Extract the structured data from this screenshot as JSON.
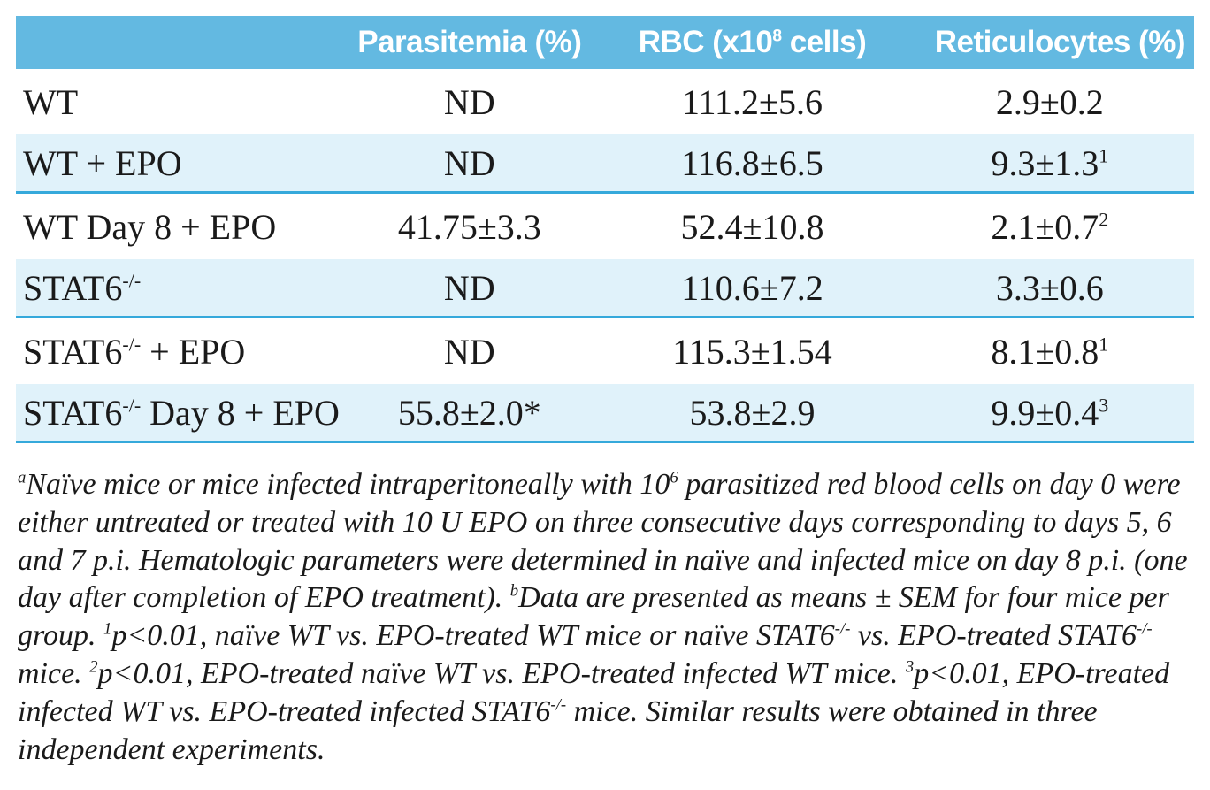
{
  "colors": {
    "page_bg": "#ffffff",
    "header_bg": "#63B9E1",
    "header_text": "#ffffff",
    "shaded_row_bg": "#E0F2FA",
    "divider": "#35A9DB",
    "text": "#1a1a1a"
  },
  "table": {
    "columns": [
      {
        "label": [
          {
            "t": ""
          }
        ]
      },
      {
        "label": [
          {
            "t": "Parasitemia (%)"
          }
        ]
      },
      {
        "label": [
          {
            "t": "RBC (x10"
          },
          {
            "t": "8",
            "sup": true
          },
          {
            "t": " cells)"
          }
        ]
      },
      {
        "label": [
          {
            "t": "Reticulocytes (%)"
          }
        ]
      }
    ],
    "rows": [
      {
        "shaded": false,
        "divider": false,
        "cells": [
          [
            {
              "t": "WT"
            }
          ],
          [
            {
              "t": "ND"
            }
          ],
          [
            {
              "t": "111.2±5.6"
            }
          ],
          [
            {
              "t": "2.9±0.2"
            }
          ]
        ]
      },
      {
        "shaded": true,
        "divider": true,
        "cells": [
          [
            {
              "t": "WT + EPO"
            }
          ],
          [
            {
              "t": "ND"
            }
          ],
          [
            {
              "t": "116.8±6.5"
            }
          ],
          [
            {
              "t": "9.3±1.3"
            },
            {
              "t": "1",
              "sup": true
            }
          ]
        ]
      },
      {
        "shaded": false,
        "divider": false,
        "cells": [
          [
            {
              "t": "WT Day 8 + EPO"
            }
          ],
          [
            {
              "t": "41.75±3.3"
            }
          ],
          [
            {
              "t": "52.4±10.8"
            }
          ],
          [
            {
              "t": "2.1±0.7"
            },
            {
              "t": "2",
              "sup": true
            }
          ]
        ]
      },
      {
        "shaded": true,
        "divider": true,
        "cells": [
          [
            {
              "t": "STAT6"
            },
            {
              "t": "-/-",
              "sup": true
            }
          ],
          [
            {
              "t": "ND"
            }
          ],
          [
            {
              "t": "110.6±7.2"
            }
          ],
          [
            {
              "t": "3.3±0.6"
            }
          ]
        ]
      },
      {
        "shaded": false,
        "divider": false,
        "cells": [
          [
            {
              "t": "STAT6"
            },
            {
              "t": "-/-",
              "sup": true
            },
            {
              "t": " + EPO"
            }
          ],
          [
            {
              "t": "ND"
            }
          ],
          [
            {
              "t": "115.3±1.54"
            }
          ],
          [
            {
              "t": "8.1±0.8"
            },
            {
              "t": "1",
              "sup": true
            }
          ]
        ]
      },
      {
        "shaded": true,
        "divider": true,
        "cells": [
          [
            {
              "t": "STAT6"
            },
            {
              "t": "-/-",
              "sup": true
            },
            {
              "t": " Day 8 + EPO"
            }
          ],
          [
            {
              "t": "55.8±2.0*"
            }
          ],
          [
            {
              "t": "53.8±2.9"
            }
          ],
          [
            {
              "t": "9.9±0.4"
            },
            {
              "t": "3",
              "sup": true
            }
          ]
        ]
      }
    ]
  },
  "footnote": {
    "runs": [
      {
        "t": "a",
        "sup": true
      },
      {
        "t": "Naïve mice or mice infected intraperitoneally with 10"
      },
      {
        "t": "6",
        "sup": true
      },
      {
        "t": " parasitized red blood cells on day 0 were either untreated or treated with 10 U EPO on three consecutive days corresponding to days 5, 6 and 7 p.i. Hematologic parameters were determined in naïve and infected mice on day 8 p.i. (one day after completion of EPO treatment). "
      },
      {
        "t": "b",
        "sup": true
      },
      {
        "t": "Data are presented as means ± SEM for four mice per group. "
      },
      {
        "t": "1",
        "sup": true
      },
      {
        "t": "p<0.01, naïve WT vs. EPO-treated WT mice or naïve STAT6"
      },
      {
        "t": "-/-",
        "sup": true
      },
      {
        "t": " vs. EPO-treated STAT6"
      },
      {
        "t": "-/-",
        "sup": true
      },
      {
        "t": " mice. "
      },
      {
        "t": "2",
        "sup": true
      },
      {
        "t": "p<0.01, EPO-treated naïve WT vs. EPO-treated infected WT mice. "
      },
      {
        "t": "3",
        "sup": true
      },
      {
        "t": "p<0.01, EPO-treated infected WT vs. EPO-treated infected STAT6"
      },
      {
        "t": "-/-",
        "sup": true
      },
      {
        "t": " mice. Similar results were obtained in three independent experiments."
      }
    ]
  }
}
